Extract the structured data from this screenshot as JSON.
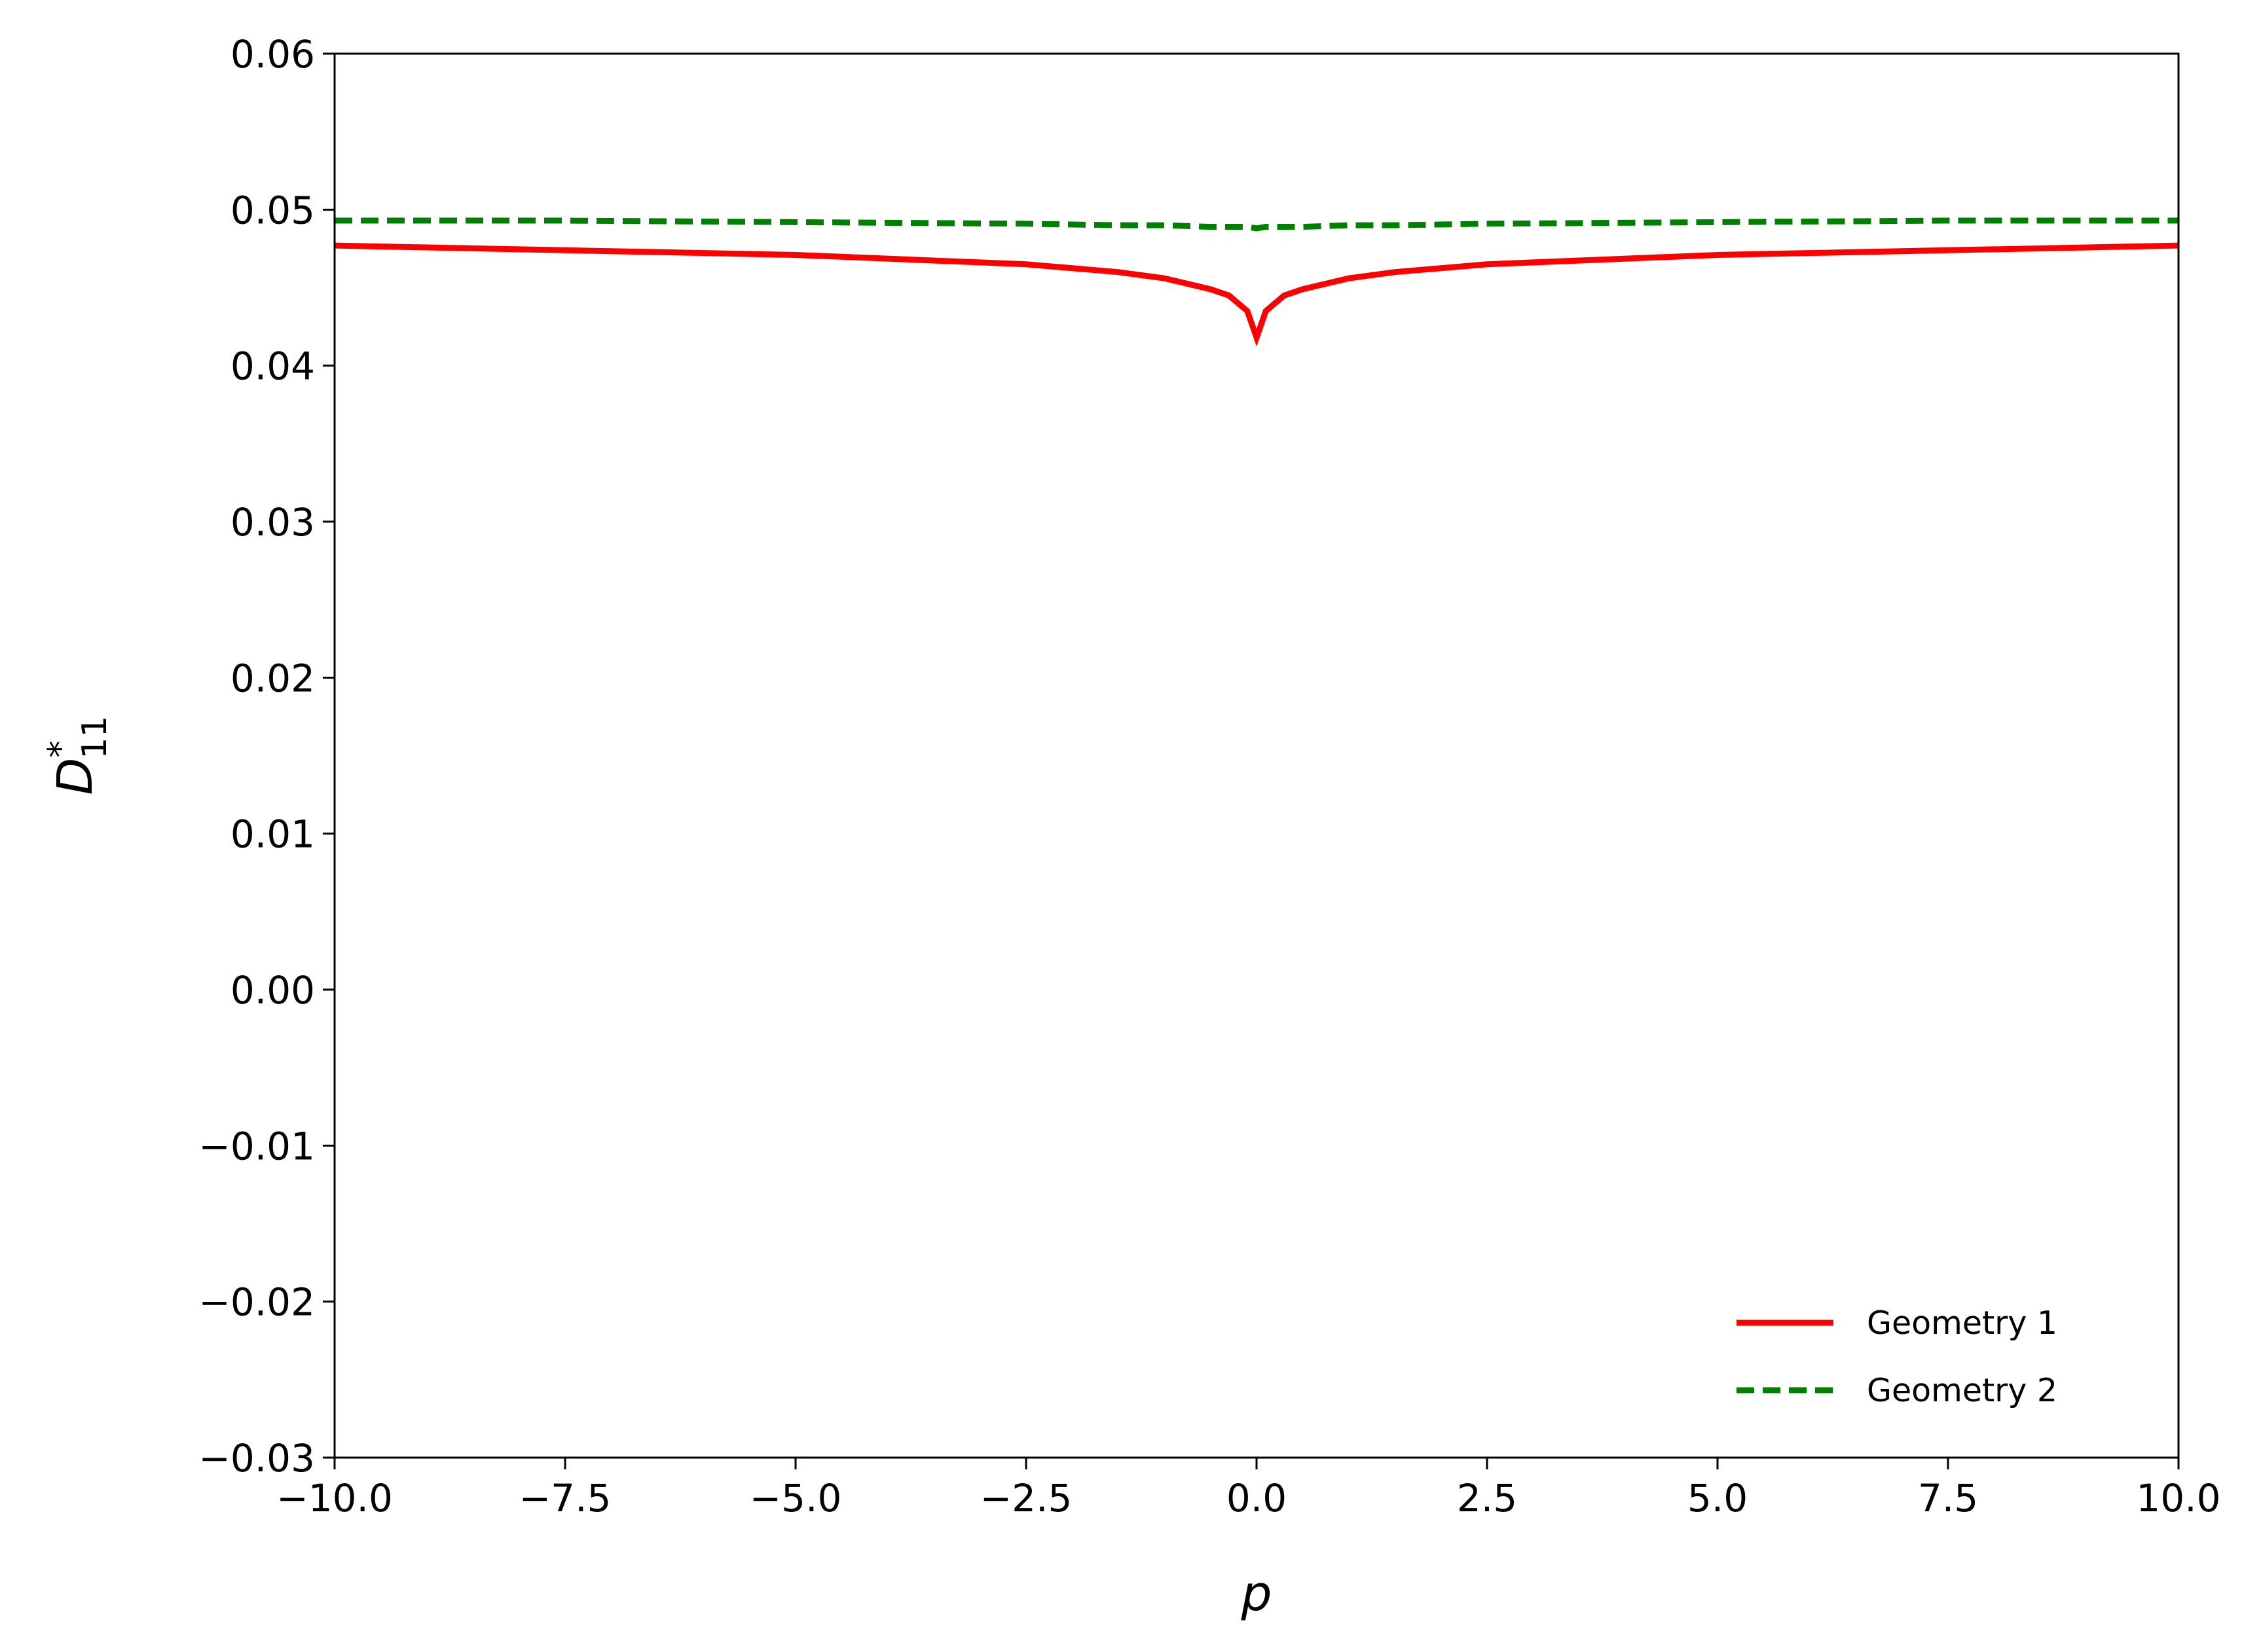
{
  "chart_data": {
    "type": "line",
    "xlabel": "p",
    "ylabel": {
      "base": "D",
      "sup": "*",
      "sub": "11"
    },
    "x": [
      -10,
      -7.5,
      -5,
      -2.5,
      -1.5,
      -1,
      -0.5,
      -0.3,
      -0.1,
      0,
      0.1,
      0.3,
      0.5,
      1,
      1.5,
      2.5,
      5,
      7.5,
      10
    ],
    "series": [
      {
        "name": "Geometry 1",
        "color": "#ff0000",
        "dash": "solid",
        "values": [
          0.0477,
          0.0474,
          0.0471,
          0.0465,
          0.046,
          0.0456,
          0.0449,
          0.0445,
          0.0435,
          0.0418,
          0.0435,
          0.0445,
          0.0449,
          0.0456,
          0.046,
          0.0465,
          0.0471,
          0.0474,
          0.0477
        ]
      },
      {
        "name": "Geometry 2",
        "color": "#008000",
        "dash": "dashed",
        "values": [
          0.0493,
          0.0493,
          0.0492,
          0.0491,
          0.049,
          0.049,
          0.0489,
          0.0489,
          0.0489,
          0.0488,
          0.0489,
          0.0489,
          0.0489,
          0.049,
          0.049,
          0.0491,
          0.0492,
          0.0493,
          0.0493
        ]
      }
    ],
    "xlim": [
      -10,
      10
    ],
    "xticks": [
      {
        "value": -10,
        "label": "−10.0"
      },
      {
        "value": -7.5,
        "label": "−7.5"
      },
      {
        "value": -5,
        "label": "−5.0"
      },
      {
        "value": -2.5,
        "label": "−2.5"
      },
      {
        "value": 0,
        "label": "0.0"
      },
      2.5,
      {
        "value": 5,
        "label": "5.0"
      },
      7.5,
      {
        "value": 10,
        "label": "10.0"
      }
    ],
    "ylim": [
      -0.03,
      0.06
    ],
    "yticks": [
      {
        "value": -0.03,
        "label": "−0.03"
      },
      {
        "value": -0.02,
        "label": "−0.02"
      },
      {
        "value": -0.01,
        "label": "−0.01"
      },
      {
        "value": 0,
        "label": "0.00"
      },
      0.01,
      0.02,
      0.03,
      0.04,
      0.05,
      0.06
    ],
    "grid": false,
    "legend": "lower right"
  }
}
